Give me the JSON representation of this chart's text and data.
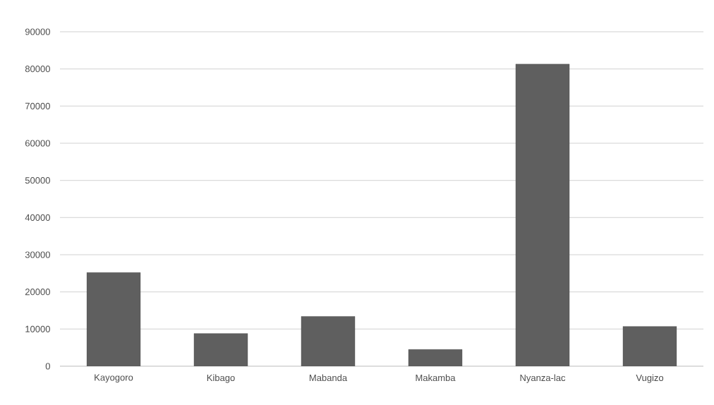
{
  "chart_data": {
    "type": "bar",
    "categories": [
      "Kayogoro",
      "Kibago",
      "Mabanda",
      "Makamba",
      "Nyanza-lac",
      "Vugizo"
    ],
    "values": [
      25200,
      8800,
      13400,
      4500,
      81300,
      10700
    ],
    "color": "#5f5f5f",
    "ylim": [
      0,
      90000
    ],
    "yticks": [
      0,
      10000,
      20000,
      30000,
      40000,
      50000,
      60000,
      70000,
      80000,
      90000
    ],
    "grid": "y"
  }
}
